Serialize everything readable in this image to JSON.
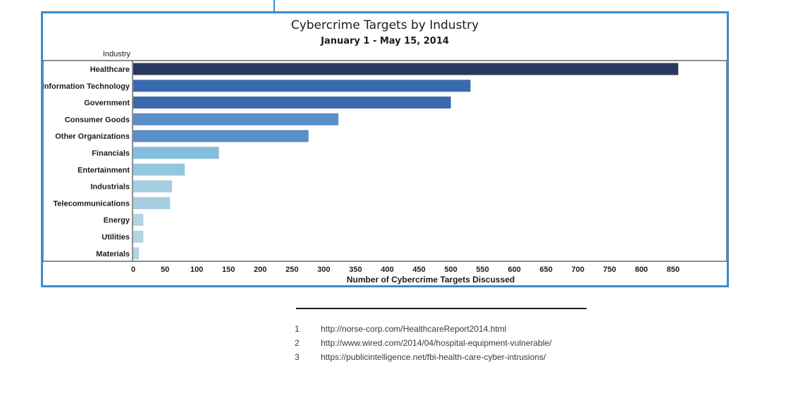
{
  "chart_data": {
    "type": "bar",
    "orientation": "horizontal",
    "title": "Cybercrime Targets by Industry",
    "subtitle": "January 1 - May 15, 2014",
    "ylabel": "Industry",
    "xlabel": "Number of Cybercrime Targets Discussed",
    "categories": [
      "Healthcare",
      "Information Technology",
      "Government",
      "Consumer Goods",
      "Other Organizations",
      "Financials",
      "Entertainment",
      "Industrials",
      "Telecommunications",
      "Energy",
      "Utilities",
      "Materials"
    ],
    "values": [
      858,
      531,
      500,
      323,
      276,
      135,
      81,
      61,
      58,
      16,
      16,
      9
    ],
    "colors": [
      "#28395f",
      "#3a6aae",
      "#3a6aae",
      "#5b8ec8",
      "#5b8ec8",
      "#84bddd",
      "#93c6df",
      "#a6cde0",
      "#a6cde0",
      "#b1d4e3",
      "#b1d4e3",
      "#b1d4e3"
    ],
    "xticks": [
      0,
      50,
      100,
      150,
      200,
      250,
      300,
      350,
      400,
      450,
      500,
      550,
      600,
      650,
      700,
      750,
      800,
      850
    ],
    "xlim": [
      0,
      900
    ],
    "grid": false
  },
  "footnotes": [
    {
      "number": "1",
      "text": "http://norse-corp.com/HealthcareReport2014.html"
    },
    {
      "number": "2",
      "text": "http://www.wired.com/2014/04/hospital-equipment-vulnerable/"
    },
    {
      "number": "3",
      "text": "https://publicintelligence.net/fbi-health-care-cyber-intrusions/"
    }
  ],
  "colors": {
    "frame": "#3a8ccf",
    "text": "#1c1c1c",
    "footnote_text": "#3a3a3a"
  }
}
